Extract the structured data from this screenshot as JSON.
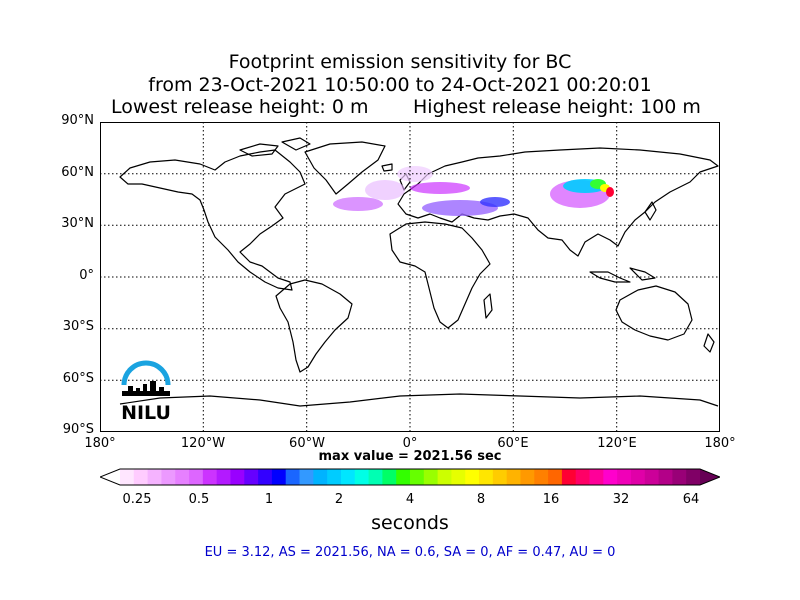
{
  "title": {
    "line1": "Footprint emission sensitivity for BC",
    "line2": "from 23-Oct-2021 10:50:00 to 24-Oct-2021 00:20:01",
    "release_low": "Lowest release height: 0 m",
    "release_high": "Highest release height: 100 m"
  },
  "axes": {
    "lat_ticks": [
      "90°N",
      "60°N",
      "30°N",
      "0°",
      "30°S",
      "60°S",
      "90°S"
    ],
    "lon_ticks": [
      "180°",
      "120°W",
      "60°W",
      "0°",
      "60°E",
      "120°E",
      "180°"
    ]
  },
  "max_value": "max value = 2021.56 sec",
  "colorbar": {
    "ticks": [
      "0.25",
      "0.5",
      "1",
      "2",
      "4",
      "8",
      "16",
      "32",
      "64"
    ],
    "label": "seconds"
  },
  "regions_text": "EU = 3.12,  AS = 2021.56,  NA = 0.6,  SA = 0,  AF = 0.47,  AU = 0",
  "logo": {
    "text": "NILU",
    "color": "#1aa3e0"
  }
}
